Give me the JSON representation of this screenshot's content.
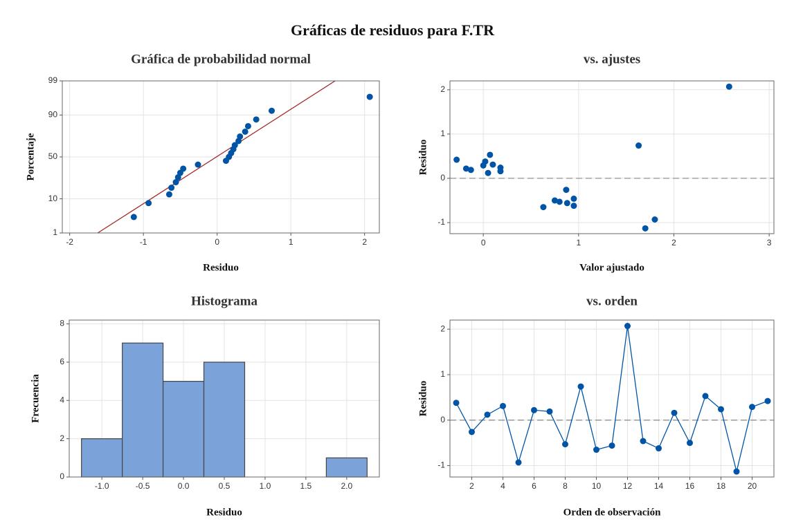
{
  "title": "Gráficas de residuos para F.TR",
  "chart_data": [
    {
      "type": "probability",
      "title": "Gráfica de probabilidad normal",
      "xlabel": "Residuo",
      "ylabel": "Porcentaje",
      "x": [
        -1.13,
        -0.93,
        -0.65,
        -0.62,
        -0.56,
        -0.53,
        -0.5,
        -0.46,
        -0.26,
        0.12,
        0.16,
        0.19,
        0.22,
        0.24,
        0.29,
        0.31,
        0.38,
        0.42,
        0.53,
        0.74,
        2.07
      ],
      "values": [
        3.3,
        7.9,
        12.6,
        17.3,
        22.0,
        26.6,
        31.3,
        36.0,
        40.7,
        45.3,
        50.0,
        54.7,
        59.3,
        64.0,
        68.7,
        73.4,
        78.0,
        82.7,
        87.4,
        92.1,
        96.7
      ],
      "color": "#0054a6",
      "fit_line": {
        "x": [
          -1.62,
          1.6
        ],
        "y": [
          1,
          99
        ],
        "color": "#a52a2a"
      },
      "xlim": [
        -2.1,
        2.2
      ],
      "xticks": [
        -2,
        -1,
        0,
        1,
        2
      ],
      "ylim": [
        1,
        99
      ],
      "yticks": [
        1,
        10,
        50,
        90,
        99
      ],
      "grid": true
    },
    {
      "type": "scatter",
      "title": "vs. ajustes",
      "xlabel": "Valor ajustado",
      "ylabel": "Residuo",
      "x": [
        0.02,
        0.87,
        0.05,
        0.1,
        1.8,
        -0.18,
        -0.13,
        0.8,
        1.63,
        0.63,
        0.88,
        2.58,
        0.95,
        0.95,
        0.18,
        0.75,
        0.07,
        0.18,
        1.7,
        0.0,
        -0.28
      ],
      "values": [
        0.38,
        -0.26,
        0.12,
        0.31,
        -0.93,
        0.22,
        0.19,
        -0.53,
        0.74,
        -0.65,
        -0.56,
        2.07,
        -0.46,
        -0.62,
        0.16,
        -0.5,
        0.53,
        0.24,
        -1.13,
        0.29,
        0.42
      ],
      "color": "#0054a6",
      "reference_line": 0,
      "xlim": [
        -0.35,
        3.05
      ],
      "xticks": [
        0,
        1,
        2,
        3
      ],
      "ylim": [
        -1.25,
        2.2
      ],
      "yticks": [
        -1,
        0,
        1,
        2
      ],
      "grid": true
    },
    {
      "type": "histogram",
      "title": "Histograma",
      "xlabel": "Residuo",
      "ylabel": "Frecuencia",
      "bins": [
        -1.25,
        -0.75,
        -0.25,
        0.25,
        0.75,
        1.25,
        1.75,
        2.25
      ],
      "values": [
        2,
        7,
        5,
        6,
        0,
        0,
        1
      ],
      "color": "#7ba3d9",
      "xlim": [
        -1.4,
        2.4
      ],
      "xticks": [
        {
          "value": -1,
          "label": "-1.0"
        },
        -0.5,
        {
          "value": 0,
          "label": "0.0"
        },
        0.5,
        {
          "value": 1,
          "label": "1.0"
        },
        1.5,
        {
          "value": 2,
          "label": "2.0"
        }
      ],
      "ylim": [
        0,
        8.2
      ],
      "yticks": [
        0,
        2,
        4,
        6,
        8
      ],
      "grid": true
    },
    {
      "type": "line",
      "title": "vs. orden",
      "xlabel": "Orden de observación",
      "ylabel": "Residuo",
      "x": [
        1,
        2,
        3,
        4,
        5,
        6,
        7,
        8,
        9,
        10,
        11,
        12,
        13,
        14,
        15,
        16,
        17,
        18,
        19,
        20,
        21
      ],
      "values": [
        0.38,
        -0.26,
        0.12,
        0.31,
        -0.93,
        0.22,
        0.19,
        -0.53,
        0.74,
        -0.65,
        -0.56,
        2.07,
        -0.46,
        -0.62,
        0.16,
        -0.5,
        0.53,
        0.24,
        -1.13,
        0.29,
        0.42
      ],
      "color": "#0054a6",
      "reference_line": 0,
      "xlim": [
        0.6,
        21.4
      ],
      "xticks": [
        2,
        4,
        6,
        8,
        10,
        12,
        14,
        16,
        18,
        20
      ],
      "ylim": [
        -1.25,
        2.2
      ],
      "yticks": [
        -1,
        0,
        1,
        2
      ],
      "grid": true
    }
  ]
}
